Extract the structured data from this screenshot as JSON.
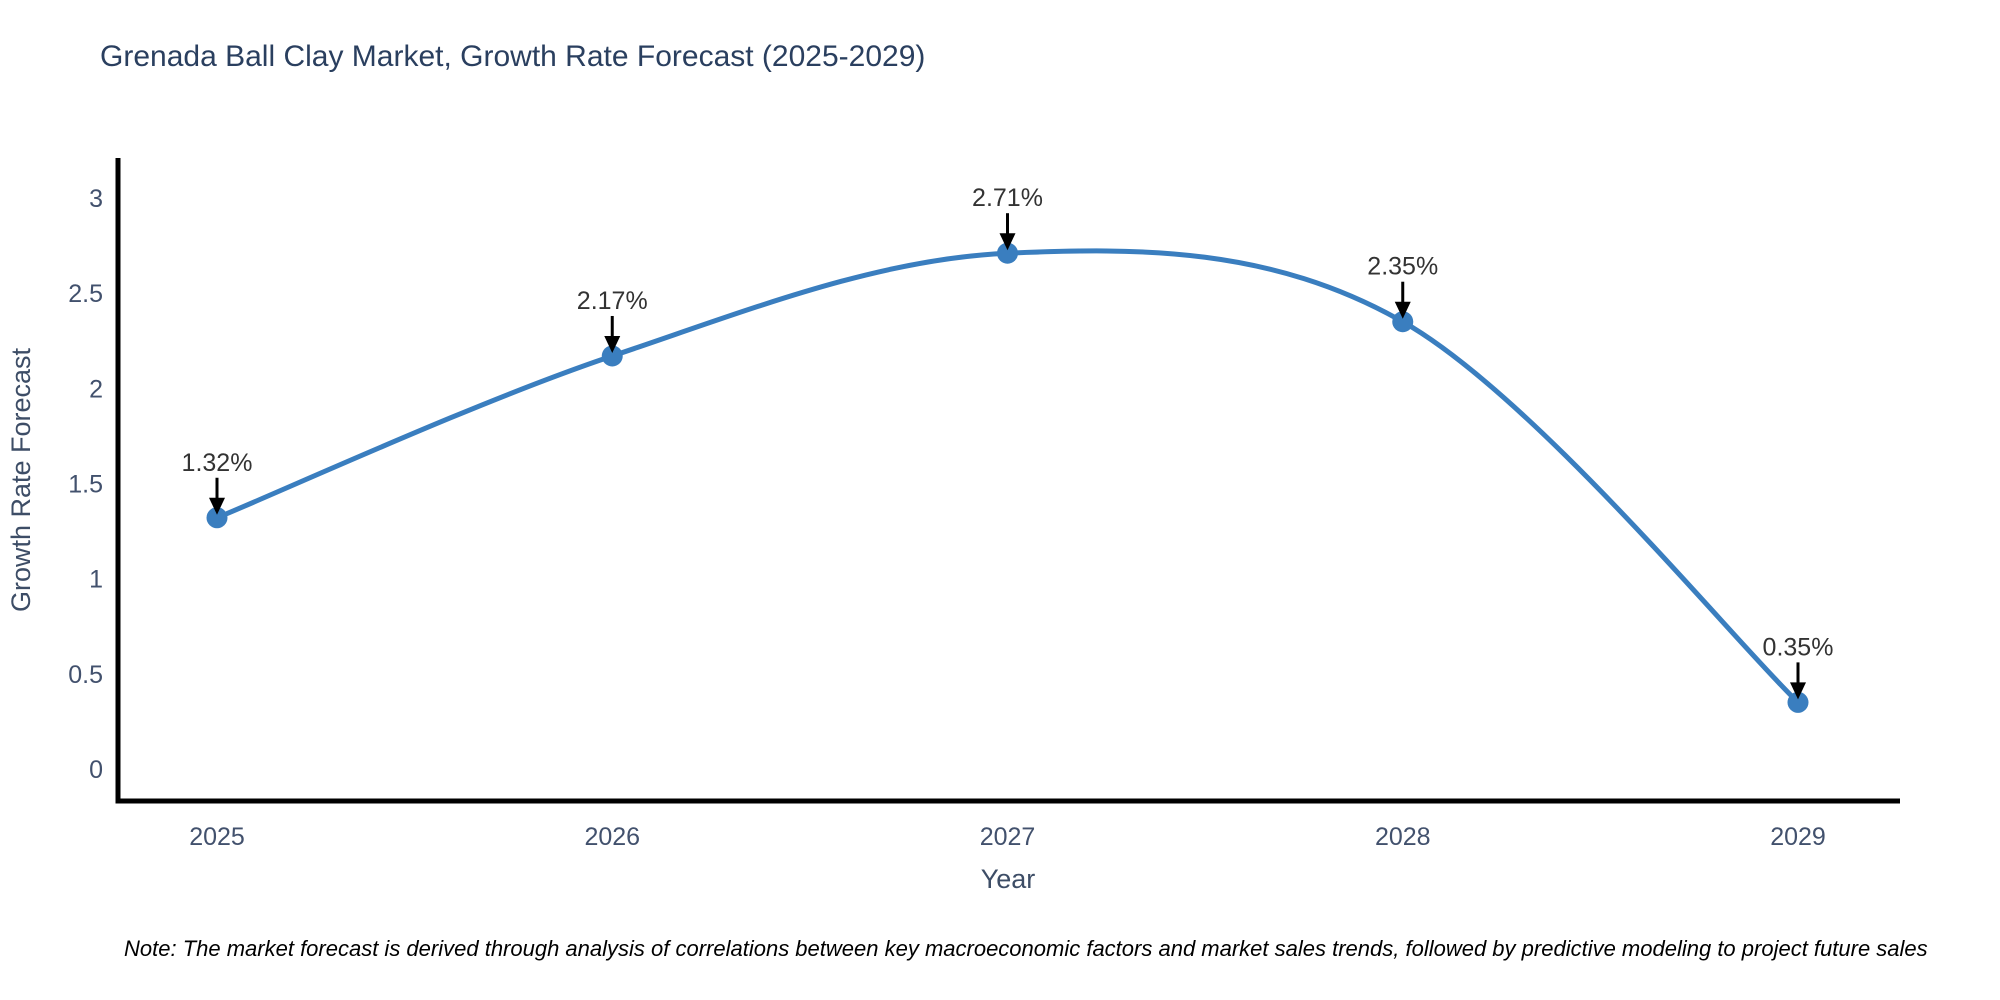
{
  "chart": {
    "title": "Grenada Ball Clay Market, Growth Rate Forecast (2025-2029)",
    "note": "Note: The market forecast is derived through analysis of correlations between key macroeconomic factors and market sales trends, followed by predictive modeling to project future sales"
  },
  "chart_data": {
    "type": "line",
    "smooth": true,
    "x": [
      2025,
      2026,
      2027,
      2028,
      2029
    ],
    "values": [
      1.32,
      2.17,
      2.71,
      2.35,
      0.35
    ],
    "point_labels": [
      "1.32%",
      "2.17%",
      "2.35%",
      "0.35%"
    ],
    "annotations": [
      "1.32%",
      "2.17%",
      "2.71%",
      "2.35%",
      "0.35%"
    ],
    "title": "Grenada Ball Clay Market, Growth Rate Forecast (2025-2029)",
    "xlabel": "Year",
    "ylabel": "Growth Rate Forecast",
    "xticks": [
      "2025",
      "2026",
      "2027",
      "2028",
      "2029"
    ],
    "yticks": [
      0,
      0.5,
      1,
      1.5,
      2,
      2.5,
      3
    ],
    "ylim": [
      0,
      3.2
    ],
    "grid": false,
    "legend": "none",
    "line_color": "#3a7ebf",
    "marker_color": "#3a7ebf",
    "arrow_color": "#000000",
    "title_color": "#2a3f5f"
  }
}
